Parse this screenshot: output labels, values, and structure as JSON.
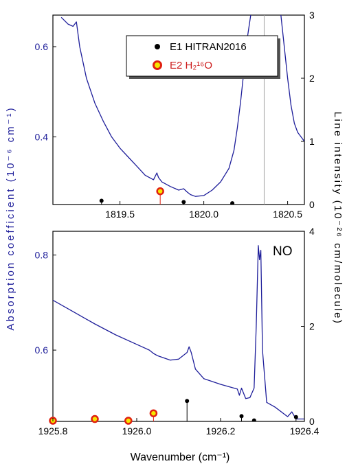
{
  "figure": {
    "y_left_label": "Absorption coefficient (10⁻⁶ cm⁻¹)",
    "y_right_label": "Line intensity (10⁻²⁶ cm/molecule)",
    "x_label": "Wavenumber (cm⁻¹)",
    "colors": {
      "spectrum": "#1e1e9a",
      "left_axis_text": "#1e1e9a",
      "axis": "#000000",
      "e1_marker": "#000000",
      "e2_fill": "#f5e600",
      "e2_stroke": "#e02010",
      "legend_e2_text": "#cc1a1a",
      "vline": "#a0a0a0"
    }
  },
  "legend": {
    "e1": "E1 HITRAN2016",
    "e2": "E2 H₂¹⁶O"
  },
  "chart_data": [
    {
      "type": "line",
      "panel": "top",
      "xlim": [
        1819.1,
        1820.6
      ],
      "ylim_left": [
        0.25,
        0.67
      ],
      "ylim_right": [
        0,
        3
      ],
      "x_ticks": [
        1819.5,
        1820.0,
        1820.5
      ],
      "x_tick_labels": [
        "1819.5",
        "1820.0",
        "1820.5"
      ],
      "y_left_ticks": [
        0.4,
        0.6
      ],
      "y_left_tick_labels": [
        "0.4",
        "0.6"
      ],
      "y_right_ticks": [
        0,
        1,
        2,
        3
      ],
      "y_right_tick_labels": [
        "0",
        "1",
        "2",
        "3"
      ],
      "series": [
        {
          "role": "absorption-spectrum",
          "axis": "left",
          "x": [
            1819.15,
            1819.19,
            1819.22,
            1819.24,
            1819.26,
            1819.3,
            1819.35,
            1819.4,
            1819.45,
            1819.5,
            1819.55,
            1819.6,
            1819.65,
            1819.7,
            1819.72,
            1819.73,
            1819.75,
            1819.8,
            1819.85,
            1819.88,
            1819.9,
            1819.92,
            1819.95,
            1820.0,
            1820.05,
            1820.1,
            1820.15,
            1820.18,
            1820.2,
            1820.22,
            1820.24,
            1820.26,
            1820.28
          ],
          "y": [
            0.665,
            0.65,
            0.645,
            0.655,
            0.6,
            0.53,
            0.475,
            0.435,
            0.4,
            0.375,
            0.355,
            0.335,
            0.315,
            0.305,
            0.32,
            0.31,
            0.3,
            0.29,
            0.282,
            0.285,
            0.278,
            0.272,
            0.268,
            0.27,
            0.282,
            0.3,
            0.33,
            0.37,
            0.42,
            0.48,
            0.55,
            0.62,
            0.67
          ]
        },
        {
          "role": "absorption-spectrum-right-wing",
          "axis": "left",
          "x": [
            1820.46,
            1820.48,
            1820.5,
            1820.52,
            1820.54,
            1820.56,
            1820.58,
            1820.6
          ],
          "y": [
            0.67,
            0.6,
            0.53,
            0.47,
            0.43,
            0.41,
            0.4,
            0.39
          ]
        }
      ],
      "sticks_e1": {
        "axis": "right",
        "x": [
          1819.39,
          1819.88,
          1820.17
        ],
        "y": [
          0.06,
          0.04,
          0.02
        ]
      },
      "markers_e2": {
        "axis": "right",
        "x": [
          1819.74
        ],
        "y": [
          0.21
        ]
      },
      "vline_x": 1820.36
    },
    {
      "type": "line",
      "panel": "bottom",
      "annotation": "NO",
      "xlim": [
        1925.8,
        1926.4
      ],
      "ylim_left": [
        0.45,
        0.85
      ],
      "ylim_right": [
        0,
        4
      ],
      "x_ticks": [
        1925.8,
        1926.0,
        1926.2,
        1926.4
      ],
      "x_tick_labels": [
        "1925.8",
        "1926.0",
        "1926.2",
        "1926.4"
      ],
      "y_left_ticks": [
        0.6,
        0.8
      ],
      "y_left_tick_labels": [
        "0.6",
        "0.8"
      ],
      "y_right_ticks": [
        0,
        2,
        4
      ],
      "y_right_tick_labels": [
        "0",
        "2",
        "4"
      ],
      "series": [
        {
          "role": "absorption-spectrum",
          "axis": "left",
          "x": [
            1925.8,
            1925.85,
            1925.9,
            1925.95,
            1926.0,
            1926.03,
            1926.04,
            1926.05,
            1926.08,
            1926.1,
            1926.12,
            1926.125,
            1926.13,
            1926.14,
            1926.16,
            1926.2,
            1926.24,
            1926.245,
            1926.25,
            1926.26,
            1926.27,
            1926.28,
            1926.285,
            1926.29,
            1926.293,
            1926.296,
            1926.3,
            1926.31,
            1926.33,
            1926.36,
            1926.37,
            1926.38,
            1926.4
          ],
          "y": [
            0.705,
            0.68,
            0.655,
            0.632,
            0.612,
            0.6,
            0.593,
            0.588,
            0.579,
            0.581,
            0.595,
            0.607,
            0.595,
            0.56,
            0.54,
            0.528,
            0.518,
            0.505,
            0.52,
            0.498,
            0.5,
            0.52,
            0.65,
            0.82,
            0.79,
            0.81,
            0.6,
            0.49,
            0.48,
            0.46,
            0.47,
            0.455,
            0.455
          ]
        }
      ],
      "sticks_e1": {
        "axis": "right",
        "x": [
          1926.12,
          1926.25,
          1926.28,
          1926.38
        ],
        "y": [
          0.43,
          0.11,
          0.02,
          0.09
        ]
      },
      "markers_e2": {
        "axis": "right",
        "x": [
          1925.8,
          1925.9,
          1925.98,
          1926.04
        ],
        "y": [
          0.0,
          0.05,
          0.0,
          0.17
        ]
      }
    }
  ]
}
